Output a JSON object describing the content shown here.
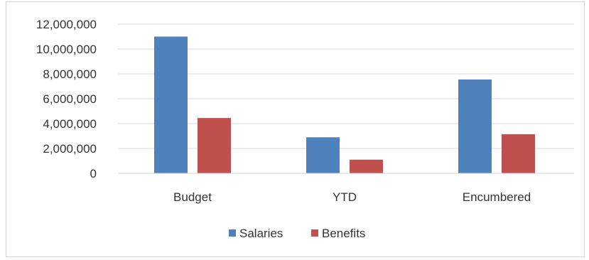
{
  "chart_data": {
    "type": "bar",
    "categories": [
      "Budget",
      "YTD",
      "Encumbered"
    ],
    "series": [
      {
        "name": "Salaries",
        "values": [
          11000000,
          2900000,
          7550000
        ],
        "color": "#4f81bd"
      },
      {
        "name": "Benefits",
        "values": [
          4450000,
          1100000,
          3150000
        ],
        "color": "#c0504d"
      }
    ],
    "ylim": [
      0,
      12000000
    ],
    "yticks": [
      0,
      2000000,
      4000000,
      6000000,
      8000000,
      10000000,
      12000000
    ],
    "ytick_labels": [
      "0",
      "2,000,000",
      "4,000,000",
      "6,000,000",
      "8,000,000",
      "10,000,000",
      "12,000,000"
    ],
    "grid": true,
    "legend": "bottom",
    "title": "",
    "xlabel": "",
    "ylabel": ""
  }
}
